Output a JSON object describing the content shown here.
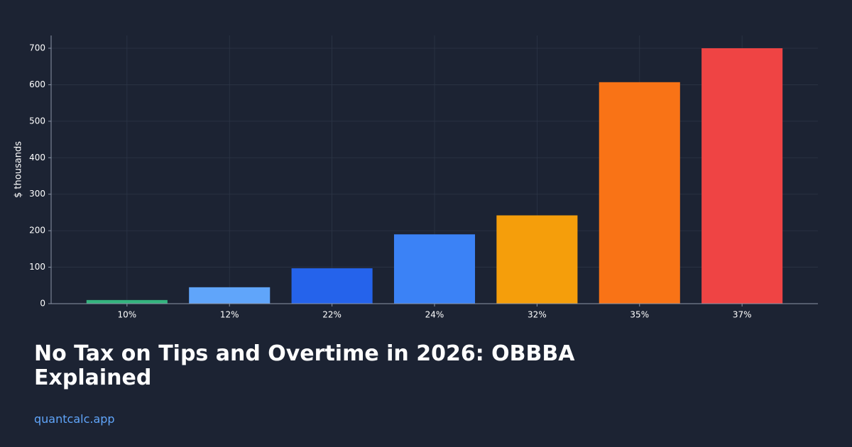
{
  "chart_data": {
    "type": "bar",
    "y_label": "$ thousands",
    "categories": [
      "10%",
      "12%",
      "22%",
      "24%",
      "32%",
      "35%",
      "37%"
    ],
    "values": [
      10,
      45,
      97,
      190,
      242,
      607,
      700
    ],
    "colors": [
      "#34b37e",
      "#60a5fa",
      "#2563eb",
      "#3b82f6",
      "#f59e0b",
      "#f97316",
      "#ef4444"
    ],
    "ylim": [
      0,
      735
    ],
    "yticks": [
      0,
      100,
      200,
      300,
      400,
      500,
      600,
      700
    ],
    "grid": true
  },
  "page": {
    "title": "No Tax on Tips and Overtime in 2026: OBBBA Explained",
    "site": "quantcalc.app"
  }
}
